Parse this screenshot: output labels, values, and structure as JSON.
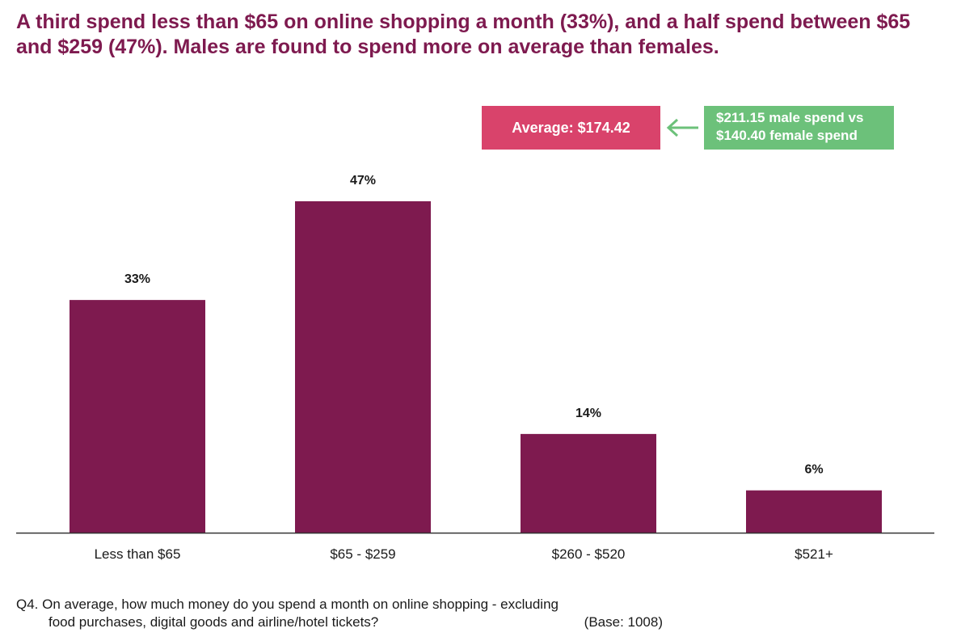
{
  "headline": "A third spend less than $65 on online shopping a month (33%), and a half spend between $65 and $259 (47%). Males are found to spend more on average than females.",
  "average_label": "Average: $174.42",
  "gender_note": {
    "line1": "$211.15 male spend vs",
    "line2": "$140.40 female spend"
  },
  "question": {
    "line1": "Q4. On average, how much money do you spend a month on online shopping - excluding",
    "line2": "food purchases, digital goods and airline/hotel tickets?",
    "base": "(Base: 1008)"
  },
  "colors": {
    "bar": "#7e1a4f",
    "headline": "#7e1a4f",
    "average_box": "#d9436b",
    "gender_box": "#6cc17a"
  },
  "chart_data": {
    "type": "bar",
    "categories": [
      "Less than $65",
      "$65 - $259",
      "$260 - $520",
      "$521+"
    ],
    "values": [
      33,
      47,
      14,
      6
    ],
    "data_labels": [
      "33%",
      "47%",
      "14%",
      "6%"
    ],
    "ylim": [
      0,
      50
    ],
    "grid": false,
    "legend": "none"
  }
}
